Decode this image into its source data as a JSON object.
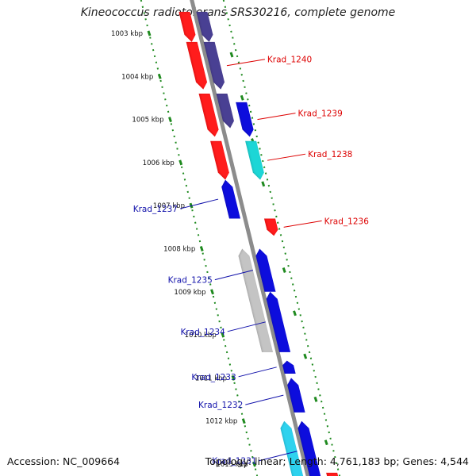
{
  "header": {
    "title": "Kineococcus radiotolerans SRS30216, complete genome"
  },
  "footer": {
    "accession": "Accession: NC_009664",
    "summary": "Topology: linear; Length: 4,761,183 bp; Genes: 4,544"
  },
  "colors": {
    "red": "#ff1a1a",
    "navy": "#4a4093",
    "blue": "#1010dd",
    "cyan": "#1fd6d6",
    "light_cyan": "#2ed2ee",
    "gray": "#c4c4c4",
    "backbone": "#8c8c8c",
    "tick_green": "#1f8a1f",
    "label_red": "#dd0000",
    "label_blue": "#1010aa"
  },
  "scale": {
    "kbp_labels": [
      "1003 kbp",
      "1004 kbp",
      "1005 kbp",
      "1006 kbp",
      "1007 kbp",
      "1008 kbp",
      "1009 kbp",
      "1010 kbp",
      "1011 kbp",
      "1012 kbp",
      "1013 kbp"
    ],
    "kbp_positions": [
      1003,
      1004,
      1005,
      1006,
      1007,
      1008,
      1009,
      1010,
      1011,
      1012,
      1013
    ]
  },
  "genes": [
    {
      "start": 1002.5,
      "end": 1003.2,
      "strand": "plus",
      "lane": 1,
      "color": "red",
      "label": ""
    },
    {
      "start": 1002.5,
      "end": 1003.2,
      "strand": "plus",
      "lane": 2,
      "color": "navy",
      "label": ""
    },
    {
      "start": 1003.2,
      "end": 1004.3,
      "strand": "plus",
      "lane": 1,
      "color": "red",
      "label": ""
    },
    {
      "start": 1003.2,
      "end": 1004.3,
      "strand": "plus",
      "lane": 2,
      "color": "navy",
      "label": "Krad_1240"
    },
    {
      "start": 1004.4,
      "end": 1005.4,
      "strand": "plus",
      "lane": 1,
      "color": "red",
      "label": ""
    },
    {
      "start": 1004.4,
      "end": 1005.2,
      "strand": "plus",
      "lane": 2,
      "color": "navy",
      "label": ""
    },
    {
      "start": 1004.6,
      "end": 1005.4,
      "strand": "plus",
      "lane": 3,
      "color": "blue",
      "label": "Krad_1239"
    },
    {
      "start": 1005.5,
      "end": 1006.4,
      "strand": "plus",
      "lane": 1,
      "color": "red",
      "label": ""
    },
    {
      "start": 1005.5,
      "end": 1006.4,
      "strand": "plus",
      "lane": 3,
      "color": "cyan",
      "label": "Krad_1238"
    },
    {
      "start": 1006.4,
      "end": 1007.3,
      "strand": "minus",
      "lane": 1,
      "color": "blue",
      "label": "Krad_1237"
    },
    {
      "start": 1007.3,
      "end": 1007.7,
      "strand": "plus",
      "lane": 3,
      "color": "red",
      "label": "Krad_1236"
    },
    {
      "start": 1008.0,
      "end": 1010.4,
      "strand": "minus",
      "lane": 1,
      "color": "gray",
      "label": ""
    },
    {
      "start": 1008.0,
      "end": 1009.0,
      "strand": "minus",
      "lane": 2,
      "color": "blue",
      "label": "Krad_1235"
    },
    {
      "start": 1009.0,
      "end": 1010.4,
      "strand": "minus",
      "lane": 2,
      "color": "blue",
      "label": "Krad_1234"
    },
    {
      "start": 1010.6,
      "end": 1010.9,
      "strand": "minus",
      "lane": 2,
      "color": "blue",
      "label": "Krad_1233"
    },
    {
      "start": 1011.0,
      "end": 1011.8,
      "strand": "minus",
      "lane": 2,
      "color": "blue",
      "label": "Krad_1232"
    },
    {
      "start": 1012.0,
      "end": 1013.4,
      "strand": "minus",
      "lane": 1,
      "color": "light_cyan",
      "label": ""
    },
    {
      "start": 1012.0,
      "end": 1013.4,
      "strand": "minus",
      "lane": 2,
      "color": "blue",
      "label": "Krad_1231"
    },
    {
      "start": 1013.2,
      "end": 1013.4,
      "strand": "plus",
      "lane": 3,
      "color": "red",
      "label": ""
    }
  ]
}
